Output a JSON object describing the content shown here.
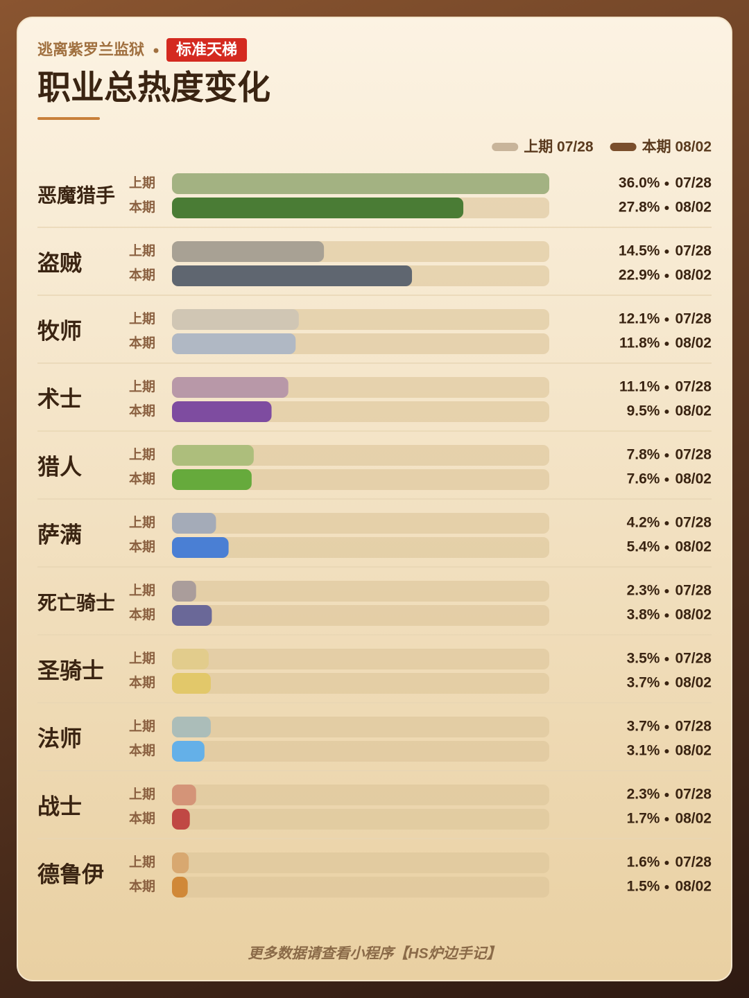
{
  "chart_data": {
    "type": "bar",
    "subtitle": "逃离紫罗兰监狱",
    "badge": "标准天梯",
    "title": "职业总热度变化",
    "footer": "更多数据请查看小程序【HS炉边手记】",
    "categories": [
      "恶魔猎手",
      "盗贼",
      "牧师",
      "术士",
      "猎人",
      "萨满",
      "死亡骑士",
      "圣骑士",
      "法师",
      "战士",
      "德鲁伊"
    ],
    "series": [
      {
        "name": "上期 07/28",
        "row_label": "上期",
        "date": "07/28",
        "color": "#c8b49a",
        "colors": [
          "#a3b282",
          "#a8a194",
          "#d0c6b4",
          "#b898a8",
          "#adbe7c",
          "#a4abb8",
          "#aa9d9b",
          "#e2cc8c",
          "#abbdb9",
          "#d49478",
          "#d8a870"
        ],
        "values": [
          36.0,
          14.5,
          12.1,
          11.1,
          7.8,
          4.2,
          2.3,
          3.5,
          3.7,
          2.3,
          1.6
        ],
        "value_labels": [
          "36.0%",
          "14.5%",
          "12.1%",
          "11.1%",
          "7.8%",
          "4.2%",
          "2.3%",
          "3.5%",
          "3.7%",
          "2.3%",
          "1.6%"
        ]
      },
      {
        "name": "本期 08/02",
        "row_label": "本期",
        "date": "08/02",
        "color": "#7a4e2c",
        "colors": [
          "#4a7c35",
          "#5f6670",
          "#b0b8c4",
          "#7e4ca0",
          "#66aa3c",
          "#4a7fd4",
          "#6a6898",
          "#e2c86a",
          "#64b0e8",
          "#c04844",
          "#d08838"
        ],
        "values": [
          27.8,
          22.9,
          11.8,
          9.5,
          7.6,
          5.4,
          3.8,
          3.7,
          3.1,
          1.7,
          1.5
        ],
        "value_labels": [
          "27.8%",
          "22.9%",
          "11.8%",
          "9.5%",
          "7.6%",
          "5.4%",
          "3.8%",
          "3.7%",
          "3.1%",
          "1.7%",
          "1.5%"
        ]
      }
    ]
  }
}
